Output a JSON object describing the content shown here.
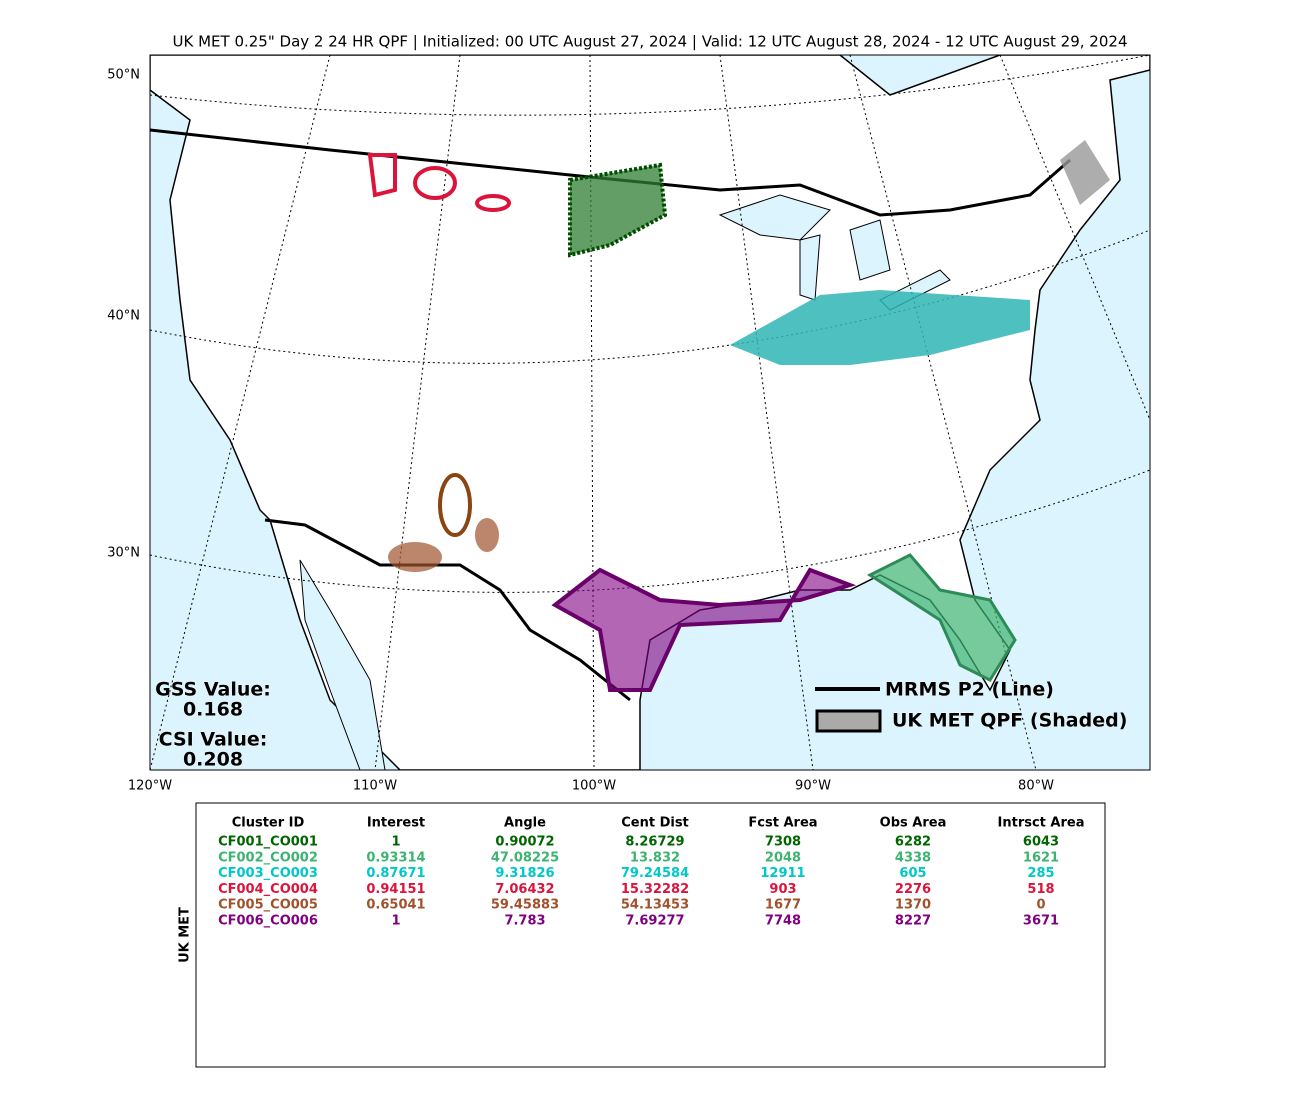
{
  "title": "UK MET 0.25\" Day 2 24 HR QPF | Initialized: 00 UTC August 27, 2024 | Valid: 12 UTC August 28, 2024 - 12 UTC August 29, 2024",
  "map": {
    "lat_labels": [
      "50°N",
      "40°N",
      "30°N"
    ],
    "lon_labels": [
      "120°W",
      "110°W",
      "100°W",
      "90°W",
      "80°W"
    ],
    "gss_label": "GSS Value:",
    "gss_value": "0.168",
    "csi_label": "CSI Value:",
    "csi_value": "0.208",
    "legend": [
      "MRMS P2 (Line)",
      "UK MET QPF (Shaded)"
    ]
  },
  "table": {
    "row_label": "UK MET",
    "columns": [
      "Cluster ID",
      "Interest",
      "Angle",
      "Cent Dist",
      "Fcst Area",
      "Obs Area",
      "Intrsct Area"
    ],
    "rows": [
      {
        "color": "#006400",
        "cells": [
          "CF001_CO001",
          "1",
          "0.90072",
          "8.26729",
          "7308",
          "6282",
          "6043"
        ]
      },
      {
        "color": "#3cb371",
        "cells": [
          "CF002_CO002",
          "0.93314",
          "47.08225",
          "13.832",
          "2048",
          "4338",
          "1621"
        ]
      },
      {
        "color": "#00c8c8",
        "cells": [
          "CF003_CO003",
          "0.87671",
          "9.31826",
          "79.24584",
          "12911",
          "605",
          "285"
        ]
      },
      {
        "color": "#dc143c",
        "cells": [
          "CF004_CO004",
          "0.94151",
          "7.06432",
          "15.32282",
          "903",
          "2276",
          "518"
        ]
      },
      {
        "color": "#a0522d",
        "cells": [
          "CF005_CO005",
          "0.65041",
          "59.45883",
          "54.13453",
          "1677",
          "1370",
          "0"
        ]
      },
      {
        "color": "#800080",
        "cells": [
          "CF006_CO006",
          "1",
          "7.783",
          "7.69277",
          "7748",
          "8227",
          "3671"
        ]
      }
    ]
  }
}
